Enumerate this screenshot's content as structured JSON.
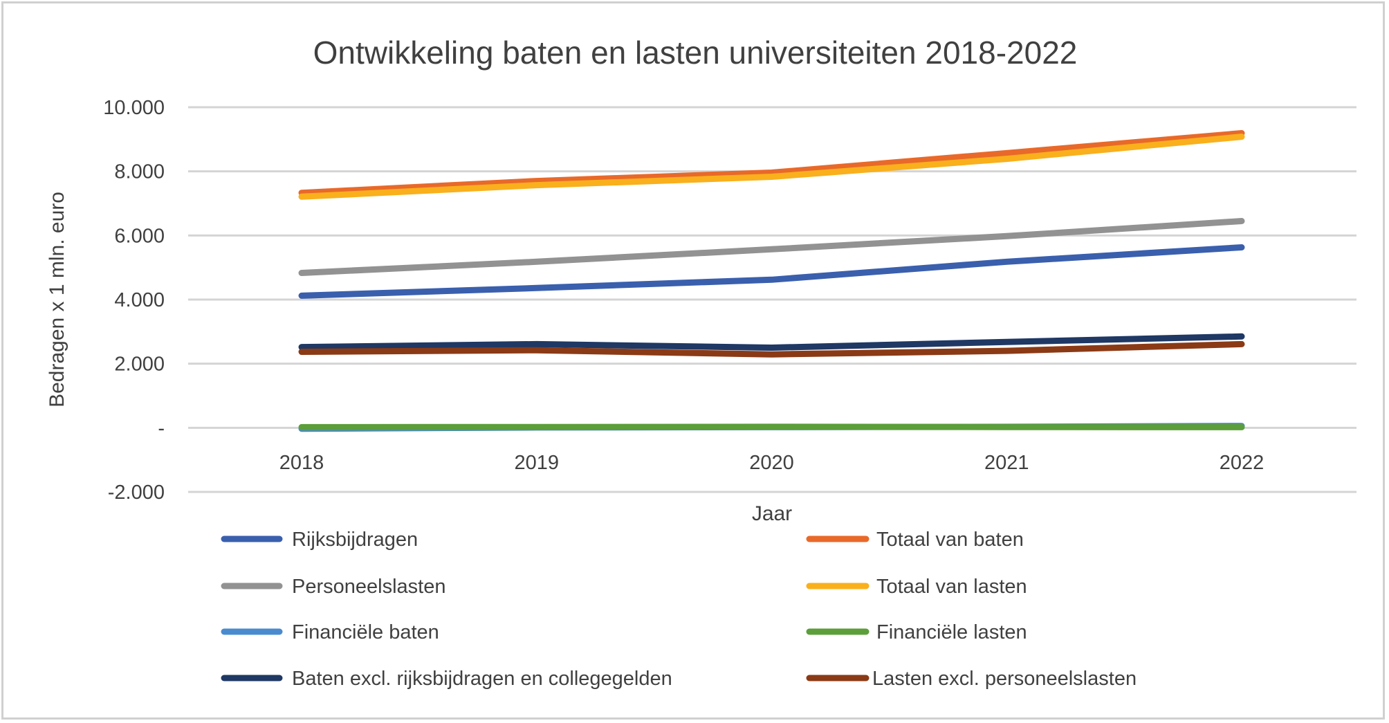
{
  "chart_data": {
    "type": "line",
    "title": "Ontwikkeling baten en lasten universiteiten 2018-2022",
    "xlabel": "Jaar",
    "ylabel": "Bedragen x 1 mln. euro",
    "categories": [
      "2018",
      "2019",
      "2020",
      "2021",
      "2022"
    ],
    "ylim": [
      -2000,
      10000
    ],
    "yticks": [
      10000,
      8000,
      6000,
      4000,
      2000,
      0,
      -2000
    ],
    "ytick_labels": [
      "10.000",
      "8.000",
      "6.000",
      "4.000",
      "2.000",
      "-",
      "-2.000"
    ],
    "grid": true,
    "legend_position": "bottom",
    "series": [
      {
        "name": "Rijksbijdragen",
        "color": "#3A5FAD",
        "values": [
          4120,
          4360,
          4620,
          5180,
          5630
        ]
      },
      {
        "name": "Totaal van baten",
        "color": "#E8692A",
        "values": [
          7330,
          7700,
          7960,
          8570,
          9190
        ]
      },
      {
        "name": "Personeelslasten",
        "color": "#929292",
        "values": [
          4830,
          5180,
          5570,
          5980,
          6450
        ]
      },
      {
        "name": "Totaal van lasten",
        "color": "#F9B01C",
        "values": [
          7210,
          7570,
          7830,
          8390,
          9080
        ]
      },
      {
        "name": "Financiële baten",
        "color": "#4A8BD0",
        "values": [
          -30,
          10,
          20,
          30,
          60
        ]
      },
      {
        "name": "Financiële lasten",
        "color": "#5B9E3A",
        "values": [
          20,
          25,
          30,
          25,
          20
        ]
      },
      {
        "name": "Baten excl. rijksbijdragen en collegegelden",
        "color": "#1F3864",
        "values": [
          2520,
          2610,
          2500,
          2680,
          2850
        ]
      },
      {
        "name": "Lasten excl. personeelslasten",
        "color": "#8B3A16",
        "values": [
          2370,
          2420,
          2290,
          2400,
          2610
        ]
      }
    ]
  }
}
